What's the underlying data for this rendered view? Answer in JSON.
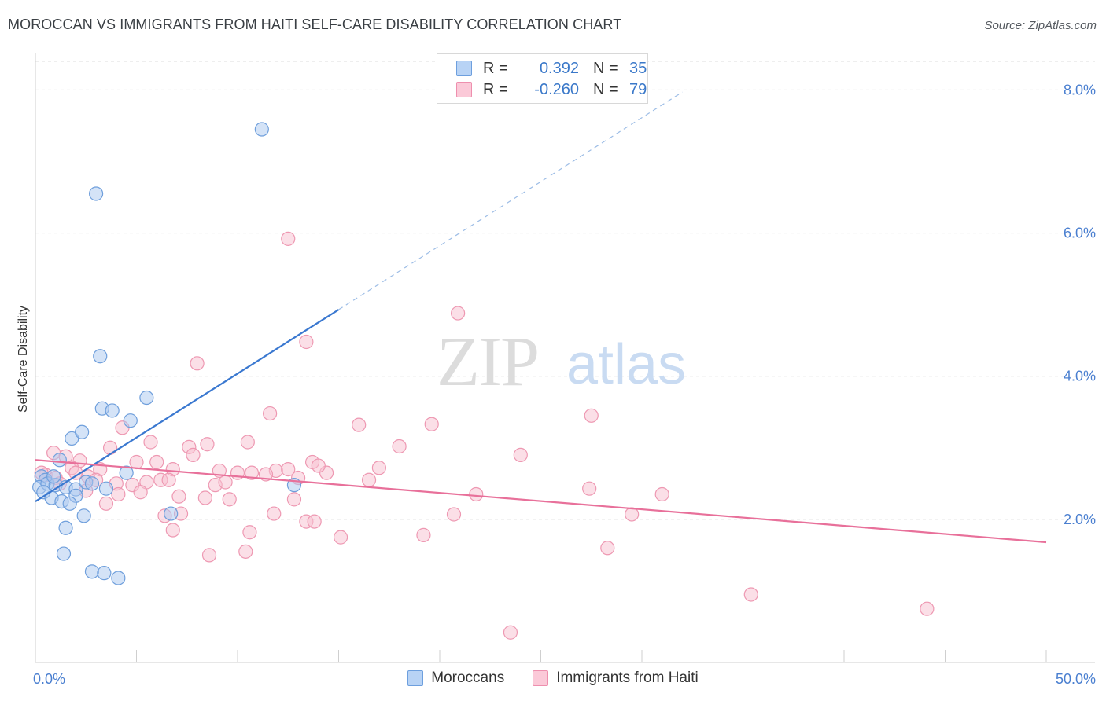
{
  "title": "MOROCCAN VS IMMIGRANTS FROM HAITI SELF-CARE DISABILITY CORRELATION CHART",
  "source": "Source: ZipAtlas.com",
  "watermark": {
    "zip": "ZIP",
    "atlas": "atlas"
  },
  "legend": {
    "r_label": "R =",
    "n_label": "N =",
    "rows": [
      {
        "r": "0.392",
        "n": "35",
        "swatch_fill": "#b8d3f5",
        "swatch_stroke": "#6d9fde"
      },
      {
        "r": "-0.260",
        "n": "79",
        "swatch_fill": "#fbc9d8",
        "swatch_stroke": "#ee8fae"
      }
    ]
  },
  "colors": {
    "blue_fill": "#aac8f0",
    "blue_stroke": "#6f9fdc",
    "blue_line": "#3a78d0",
    "pink_fill": "#f8bfd0",
    "pink_stroke": "#ee98b2",
    "pink_line": "#e8709a",
    "axis_text": "#4a7fd0",
    "grid": "#dcdcdc"
  },
  "chart_data": {
    "type": "scatter",
    "title": "MOROCCAN VS IMMIGRANTS FROM HAITI SELF-CARE DISABILITY CORRELATION CHART",
    "xlabel": "",
    "ylabel": "Self-Care Disability",
    "xlim": [
      0,
      50
    ],
    "ylim": [
      0,
      8.4
    ],
    "x_tick_labels": [
      "0.0%",
      "50.0%"
    ],
    "y_ticks": [
      2.0,
      4.0,
      6.0,
      8.0
    ],
    "y_tick_labels": [
      "2.0%",
      "4.0%",
      "6.0%",
      "8.0%"
    ],
    "grid": true,
    "legend_position": "bottom",
    "series": [
      {
        "name": "Moroccans",
        "r": 0.392,
        "n": 35,
        "trend": {
          "x0": 0.0,
          "y0": 2.25,
          "x1": 15.0,
          "y1": 4.93,
          "dashed_to_x": 32.0,
          "dashed_to_y": 7.97
        },
        "points": [
          [
            11.2,
            7.45
          ],
          [
            3.0,
            6.55
          ],
          [
            3.2,
            4.28
          ],
          [
            3.3,
            3.55
          ],
          [
            3.8,
            3.52
          ],
          [
            5.5,
            3.7
          ],
          [
            4.7,
            3.38
          ],
          [
            1.8,
            3.13
          ],
          [
            2.3,
            3.22
          ],
          [
            1.2,
            2.83
          ],
          [
            0.3,
            2.6
          ],
          [
            0.5,
            2.55
          ],
          [
            0.2,
            2.45
          ],
          [
            0.6,
            2.5
          ],
          [
            1.0,
            2.48
          ],
          [
            1.5,
            2.45
          ],
          [
            2.0,
            2.42
          ],
          [
            2.5,
            2.52
          ],
          [
            2.8,
            2.5
          ],
          [
            0.4,
            2.38
          ],
          [
            0.8,
            2.3
          ],
          [
            1.3,
            2.25
          ],
          [
            2.0,
            2.33
          ],
          [
            3.5,
            2.43
          ],
          [
            4.5,
            2.65
          ],
          [
            12.8,
            2.48
          ],
          [
            1.5,
            1.88
          ],
          [
            2.4,
            2.05
          ],
          [
            6.7,
            2.08
          ],
          [
            1.4,
            1.52
          ],
          [
            2.8,
            1.27
          ],
          [
            3.4,
            1.25
          ],
          [
            4.1,
            1.18
          ],
          [
            0.9,
            2.6
          ],
          [
            1.7,
            2.22
          ]
        ]
      },
      {
        "name": "Immigrants from Haiti",
        "r": -0.26,
        "n": 79,
        "trend": {
          "x0": 0.0,
          "y0": 2.83,
          "x1": 50.0,
          "y1": 1.68
        },
        "points": [
          [
            12.5,
            5.92
          ],
          [
            20.9,
            4.88
          ],
          [
            13.4,
            4.48
          ],
          [
            8.0,
            4.18
          ],
          [
            11.6,
            3.48
          ],
          [
            16.0,
            3.32
          ],
          [
            19.6,
            3.33
          ],
          [
            27.5,
            3.45
          ],
          [
            4.3,
            3.28
          ],
          [
            0.9,
            2.93
          ],
          [
            3.7,
            3.0
          ],
          [
            5.7,
            3.08
          ],
          [
            7.6,
            3.01
          ],
          [
            8.5,
            3.05
          ],
          [
            10.5,
            3.08
          ],
          [
            18.0,
            3.02
          ],
          [
            7.8,
            2.9
          ],
          [
            1.5,
            2.88
          ],
          [
            2.2,
            2.82
          ],
          [
            3.2,
            2.7
          ],
          [
            5.0,
            2.8
          ],
          [
            6.0,
            2.8
          ],
          [
            6.8,
            2.7
          ],
          [
            9.1,
            2.68
          ],
          [
            10.0,
            2.65
          ],
          [
            10.7,
            2.65
          ],
          [
            11.9,
            2.68
          ],
          [
            12.5,
            2.7
          ],
          [
            13.7,
            2.8
          ],
          [
            14.4,
            2.65
          ],
          [
            17.0,
            2.72
          ],
          [
            0.5,
            2.62
          ],
          [
            1.0,
            2.58
          ],
          [
            1.8,
            2.72
          ],
          [
            2.6,
            2.6
          ],
          [
            3.0,
            2.55
          ],
          [
            4.0,
            2.5
          ],
          [
            4.8,
            2.48
          ],
          [
            5.5,
            2.52
          ],
          [
            6.2,
            2.55
          ],
          [
            6.6,
            2.55
          ],
          [
            8.9,
            2.48
          ],
          [
            9.4,
            2.52
          ],
          [
            11.4,
            2.63
          ],
          [
            13.0,
            2.58
          ],
          [
            16.5,
            2.55
          ],
          [
            2.5,
            2.4
          ],
          [
            4.1,
            2.35
          ],
          [
            5.2,
            2.38
          ],
          [
            7.1,
            2.32
          ],
          [
            8.4,
            2.3
          ],
          [
            9.6,
            2.28
          ],
          [
            12.8,
            2.28
          ],
          [
            21.8,
            2.35
          ],
          [
            27.4,
            2.43
          ],
          [
            3.5,
            2.22
          ],
          [
            6.4,
            2.05
          ],
          [
            7.2,
            2.08
          ],
          [
            11.8,
            2.08
          ],
          [
            13.4,
            1.97
          ],
          [
            13.8,
            1.97
          ],
          [
            20.7,
            2.07
          ],
          [
            29.5,
            2.07
          ],
          [
            6.8,
            1.85
          ],
          [
            10.6,
            1.82
          ],
          [
            15.1,
            1.75
          ],
          [
            19.2,
            1.78
          ],
          [
            8.6,
            1.5
          ],
          [
            10.4,
            1.55
          ],
          [
            28.3,
            1.6
          ],
          [
            35.4,
            0.95
          ],
          [
            44.1,
            0.75
          ],
          [
            23.5,
            0.42
          ],
          [
            0.3,
            2.65
          ],
          [
            1.2,
            2.5
          ],
          [
            2.0,
            2.65
          ],
          [
            14.0,
            2.75
          ],
          [
            24.0,
            2.9
          ],
          [
            31.0,
            2.35
          ]
        ]
      }
    ]
  }
}
